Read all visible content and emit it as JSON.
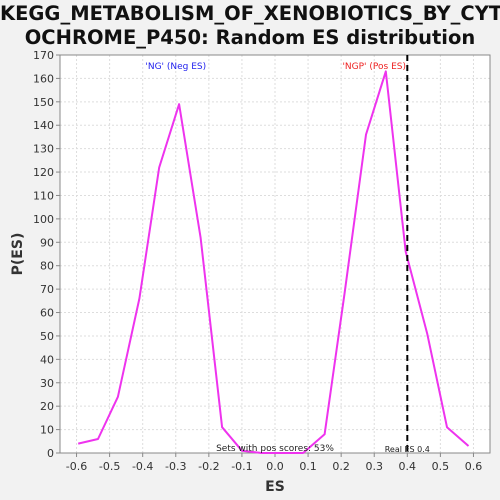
{
  "chart_data": {
    "type": "line",
    "title_line1": "KEGG_METABOLISM_OF_XENOBIOTICS_BY_CYT",
    "title_line2": "OCHROME_P450: Random ES distribution",
    "xlabel": "ES",
    "ylabel": "P(ES)",
    "xlim": [
      -0.65,
      0.65
    ],
    "ylim": [
      0,
      170
    ],
    "xticks": [
      -0.6,
      -0.5,
      -0.4,
      -0.3,
      -0.2,
      -0.1,
      0.0,
      0.1,
      0.2,
      0.3,
      0.4,
      0.5,
      0.6
    ],
    "xtick_labels": [
      "-0.6",
      "-0.5",
      "-0.4",
      "-0.3",
      "-0.2",
      "-0.1",
      "0.0",
      "0.1",
      "0.2",
      "0.3",
      "0.4",
      "0.5",
      "0.6"
    ],
    "yticks": [
      0,
      10,
      20,
      30,
      40,
      50,
      60,
      70,
      80,
      90,
      100,
      110,
      120,
      130,
      140,
      150,
      160,
      170
    ],
    "grid": true,
    "series": [
      {
        "color": "#ee33ee",
        "x": [
          -0.595,
          -0.535,
          -0.475,
          -0.41,
          -0.35,
          -0.29,
          -0.225,
          -0.16,
          -0.1,
          -0.04,
          0.02,
          0.085,
          0.15,
          0.21,
          0.275,
          0.335,
          0.395,
          0.46,
          0.52,
          0.585
        ],
        "y": [
          4,
          6,
          24,
          66,
          122,
          149,
          92,
          11,
          1,
          0,
          0,
          0,
          8,
          68,
          136,
          163,
          86,
          51,
          11,
          3
        ]
      }
    ],
    "real_es": 0.4,
    "annotations": {
      "neg_label": "'NG' (Neg ES)",
      "pos_label": "'NGP' (Pos ES)",
      "neg_color": "#2222ee",
      "pos_color": "#ee2222",
      "sets_text": "Sets with pos scores: 53%",
      "real_es_text": "Real ES 0.4"
    }
  }
}
